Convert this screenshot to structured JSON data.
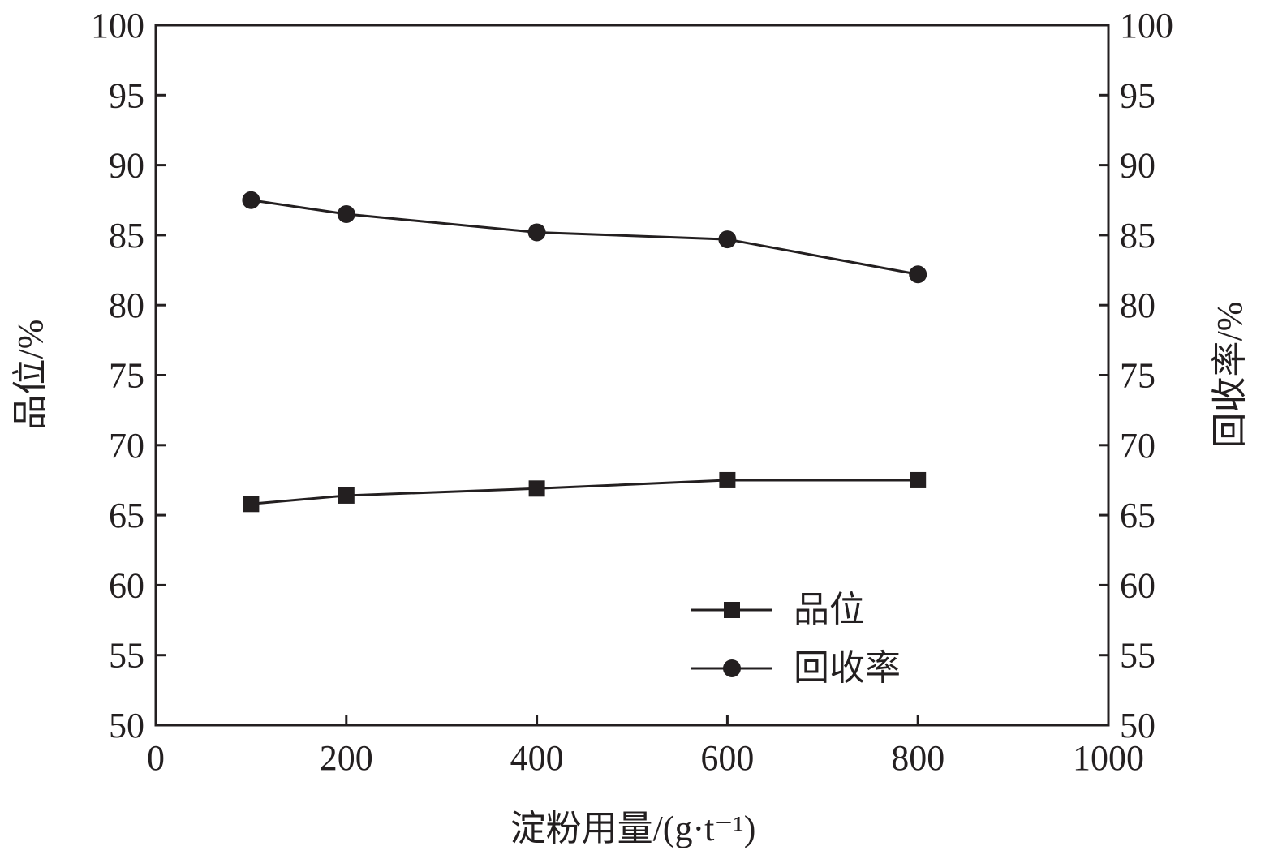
{
  "chart_data": {
    "type": "line",
    "x": [
      100,
      200,
      400,
      600,
      800
    ],
    "series": [
      {
        "name": "品位",
        "marker": "square",
        "values": [
          65.8,
          66.4,
          66.9,
          67.5,
          67.5
        ]
      },
      {
        "name": "回收率",
        "marker": "circle",
        "values": [
          87.5,
          86.5,
          85.2,
          84.7,
          82.2
        ]
      }
    ],
    "xlabel": "淀粉用量/(g·t⁻¹)",
    "ylabel_left": "品位/%",
    "ylabel_right": "回收率/%",
    "xlim": [
      0,
      1000
    ],
    "ylim": [
      50,
      100
    ],
    "xticks": [
      0,
      200,
      400,
      600,
      800,
      1000
    ],
    "yticks": [
      50,
      55,
      60,
      65,
      70,
      75,
      80,
      85,
      90,
      95,
      100
    ],
    "grid": false,
    "legend_position": "bottom-right",
    "colors": {
      "line": "#231f20",
      "axis": "#231f20",
      "background": "#ffffff"
    }
  }
}
